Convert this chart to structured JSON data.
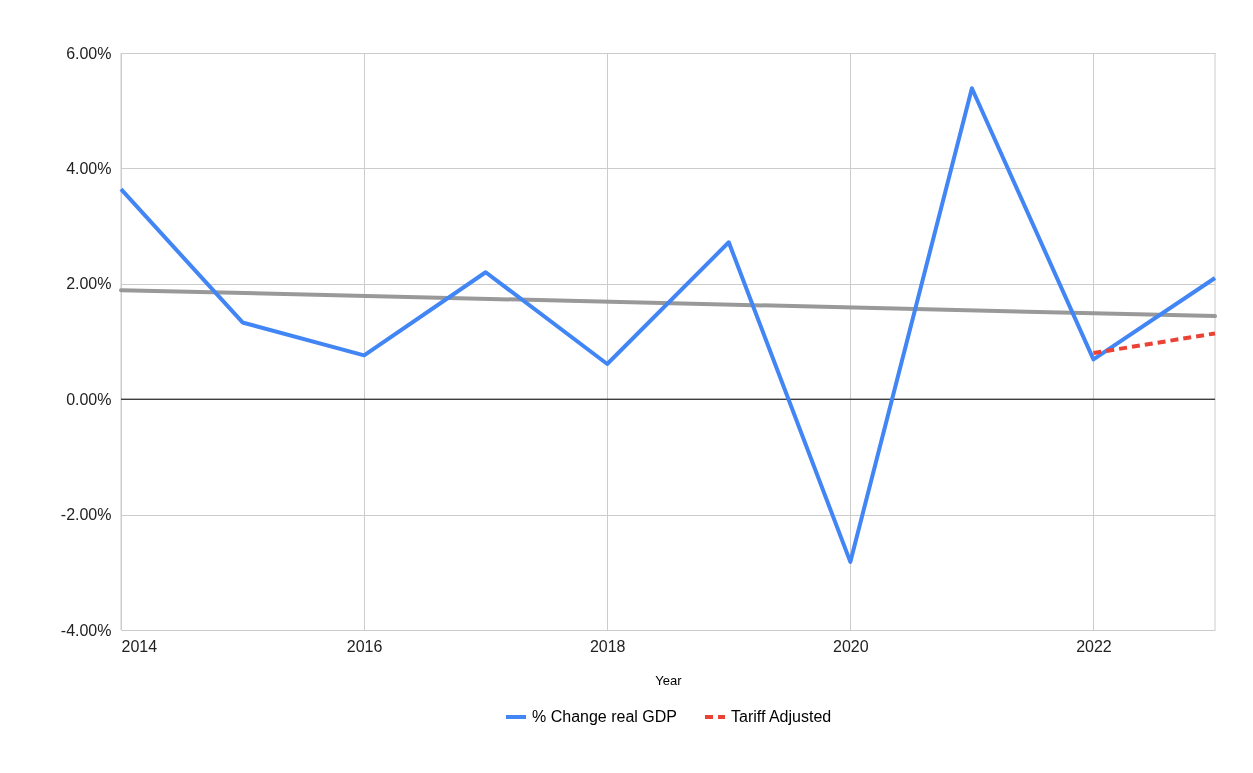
{
  "chart_data": {
    "type": "line",
    "xlabel": "Year",
    "x": [
      2014,
      2015,
      2016,
      2017,
      2018,
      2019,
      2020,
      2021,
      2022,
      2023
    ],
    "series": [
      {
        "name": "% Change real GDP",
        "color": "#4285f4",
        "line_style": "solid",
        "values": [
          3.64,
          1.33,
          0.76,
          2.2,
          0.61,
          2.72,
          -2.82,
          5.39,
          0.69,
          2.1
        ]
      },
      {
        "name": "Tariff Adjusted",
        "color": "#ea4335",
        "line_style": "dashed",
        "x": [
          2022,
          2023
        ],
        "values": [
          0.8,
          1.14
        ]
      },
      {
        "type": "line",
        "color": "#999999",
        "line_style": "solid",
        "x": [
          2014,
          2023
        ],
        "values": [
          1.89,
          1.44
        ]
      }
    ],
    "xlim": [
      2014,
      2023
    ],
    "xticks": [
      2014,
      2016,
      2018,
      2020,
      2022
    ],
    "ylim": [
      -4,
      6
    ],
    "yticks": [
      {
        "value": -4,
        "label": "-4.00%"
      },
      {
        "value": -2,
        "label": "-2.00%"
      },
      {
        "value": 0,
        "label": "0.00%"
      },
      {
        "value": 2,
        "label": "2.00%"
      },
      {
        "value": 4,
        "label": "4.00%"
      },
      {
        "value": 6,
        "label": "6.00%"
      }
    ],
    "ref_lines": [
      {
        "axis": "y",
        "value": 0,
        "color": "#000000"
      }
    ],
    "grid": true,
    "legend": "bottom",
    "marker": "none"
  }
}
